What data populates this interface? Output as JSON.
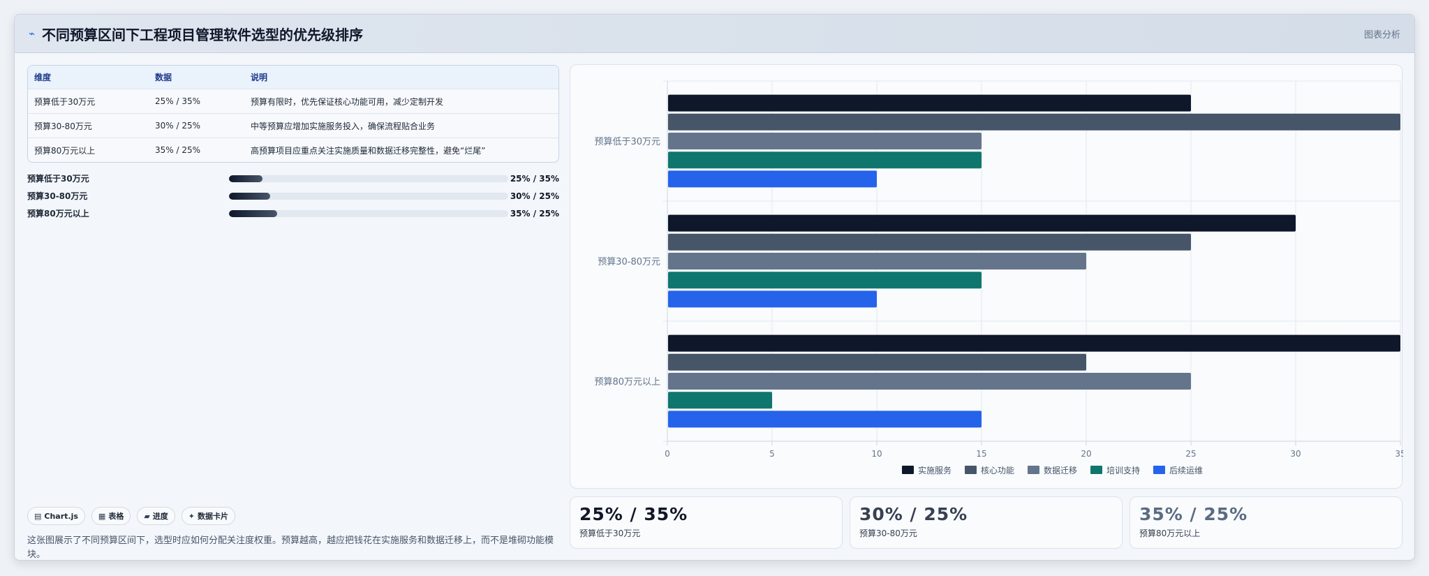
{
  "header": {
    "title": "不同预算区间下工程项目管理软件选型的优先级排序",
    "tag": "图表分析"
  },
  "table": {
    "columns": [
      "维度",
      "数据",
      "说明"
    ],
    "rows": [
      [
        "预算低于30万元",
        "25% / 35%",
        "预算有限时，优先保证核心功能可用，减少定制开发"
      ],
      [
        "预算30-80万元",
        "30% / 25%",
        "中等预算应增加实施服务投入，确保流程贴合业务"
      ],
      [
        "预算80万元以上",
        "35% / 25%",
        "高预算项目应重点关注实施质量和数据迁移完整性，避免“烂尾”"
      ]
    ]
  },
  "progress": [
    {
      "label": "预算低于30万元",
      "value_text": "25% / 35%",
      "fraction": 0.12
    },
    {
      "label": "预算30-80万元",
      "value_text": "30% / 25%",
      "fraction": 0.147
    },
    {
      "label": "预算80万元以上",
      "value_text": "35% / 25%",
      "fraction": 0.172
    }
  ],
  "chips": [
    {
      "icon": "chart-icon",
      "glyph": "▤",
      "label": "Chart.js"
    },
    {
      "icon": "table-icon",
      "glyph": "▦",
      "label": "表格"
    },
    {
      "icon": "progress-icon",
      "glyph": "▰",
      "label": "进度"
    },
    {
      "icon": "card-icon",
      "glyph": "✦",
      "label": "数据卡片"
    }
  ],
  "note": "这张图展示了不同预算区间下，选型时应如何分配关注度权重。预算越高，越应把钱花在实施服务和数据迁移上，而不是堆砌功能模块。",
  "kpis": [
    {
      "value": "25% / 35%",
      "label": "预算低于30万元",
      "color": "#111827"
    },
    {
      "value": "30% / 25%",
      "label": "预算30-80万元",
      "color": "#374151"
    },
    {
      "value": "35% / 25%",
      "label": "预算80万元以上",
      "color": "#5b6b82"
    }
  ],
  "chart_data": {
    "type": "bar",
    "orientation": "horizontal",
    "categories": [
      "预算低于30万元",
      "预算30-80万元",
      "预算80万元以上"
    ],
    "series": [
      {
        "name": "实施服务",
        "color": "#0f172a",
        "values": [
          25,
          30,
          35
        ]
      },
      {
        "name": "核心功能",
        "color": "#475569",
        "values": [
          35,
          25,
          20
        ]
      },
      {
        "name": "数据迁移",
        "color": "#64748b",
        "values": [
          15,
          20,
          25
        ]
      },
      {
        "name": "培训支持",
        "color": "#0f766e",
        "values": [
          15,
          15,
          5
        ]
      },
      {
        "name": "后续运维",
        "color": "#2563eb",
        "values": [
          10,
          10,
          15
        ]
      }
    ],
    "xlim": [
      0,
      35
    ],
    "xticks": [
      0,
      5,
      10,
      15,
      20,
      25,
      30,
      35
    ],
    "grid": true,
    "legend": "bottom"
  }
}
